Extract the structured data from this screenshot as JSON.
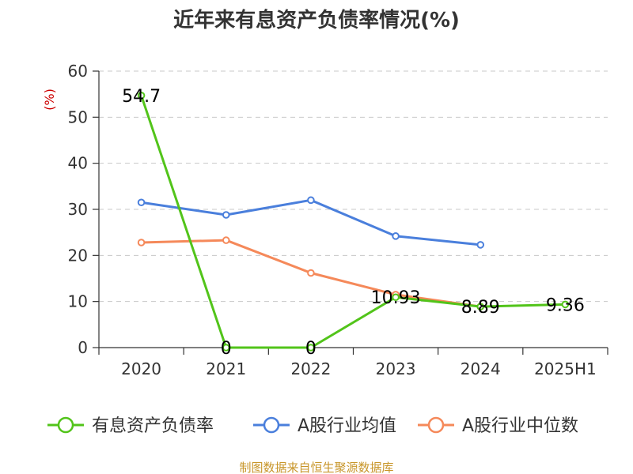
{
  "chart_data": {
    "type": "line",
    "title": "近年来有息资产负债率情况(%)",
    "ylabel": "(%)",
    "xlabel": "",
    "ylim": [
      0,
      60
    ],
    "yticks": [
      "0",
      "10",
      "20",
      "30",
      "40",
      "50",
      "60"
    ],
    "categories": [
      "2020",
      "2021",
      "2022",
      "2023",
      "2024",
      "2025H1"
    ],
    "grid": true,
    "legend_position": "bottom",
    "series": [
      {
        "name": "有息资产负债率",
        "color": "#52c41a",
        "values": [
          54.7,
          0,
          0,
          10.93,
          8.89,
          9.36
        ],
        "labels": [
          "54.7",
          "0",
          "0",
          "10.93",
          "8.89",
          "9.36"
        ]
      },
      {
        "name": "A股行业均值",
        "color": "#4a7fdc",
        "values": [
          31.5,
          28.8,
          32.0,
          24.2,
          22.3,
          null
        ]
      },
      {
        "name": "A股行业中位数",
        "color": "#f5895a",
        "values": [
          22.8,
          23.3,
          16.2,
          11.5,
          8.9,
          null
        ]
      }
    ]
  },
  "source_text": "制图数据来自恒生聚源数据库"
}
